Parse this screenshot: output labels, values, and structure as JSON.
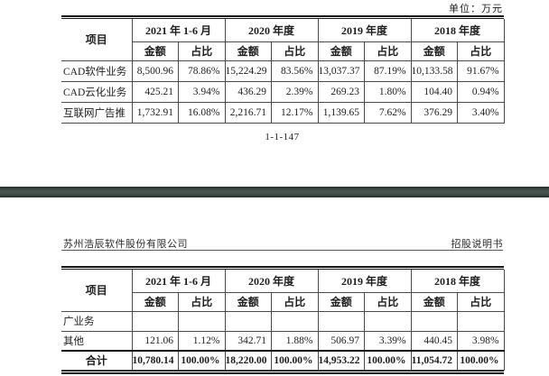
{
  "unit_label": "单位：万元",
  "page1": {
    "table": {
      "item_header": "项目",
      "col_groups": [
        "2021 年 1-6 月",
        "2020 年度",
        "2019 年度",
        "2018 年度"
      ],
      "sub_headers": [
        "金额",
        "占比"
      ],
      "rows": [
        {
          "label": "CAD软件业务",
          "values": [
            "8,500.96",
            "78.86%",
            "15,224.29",
            "83.56%",
            "13,037.37",
            "87.19%",
            "10,133.58",
            "91.67%"
          ]
        },
        {
          "label": "CAD云化业务",
          "values": [
            "425.21",
            "3.94%",
            "436.29",
            "2.39%",
            "269.23",
            "1.80%",
            "104.40",
            "0.94%"
          ]
        },
        {
          "label": "互联网广告推",
          "values": [
            "1,732.91",
            "16.08%",
            "2,216.71",
            "12.17%",
            "1,139.65",
            "7.62%",
            "376.29",
            "3.40%"
          ]
        }
      ]
    },
    "page_number": "1-1-147"
  },
  "page2": {
    "header": {
      "company": "苏州浩辰软件股份有限公司",
      "doc_type": "招股说明书"
    },
    "table": {
      "item_header": "项目",
      "col_groups": [
        "2021 年 1-6 月",
        "2020 年度",
        "2019 年度",
        "2018 年度"
      ],
      "sub_headers": [
        "金额",
        "占比"
      ],
      "rows": [
        {
          "label": "广业务",
          "values": [
            "",
            "",
            "",
            "",
            "",
            "",
            "",
            ""
          ]
        },
        {
          "label": "其他",
          "values": [
            "121.06",
            "1.12%",
            "342.71",
            "1.88%",
            "506.97",
            "3.39%",
            "440.45",
            "3.98%"
          ]
        },
        {
          "label": "合计",
          "values": [
            "10,780.14",
            "100.00%",
            "18,220.00",
            "100.00%",
            "14,953.22",
            "100.00%",
            "11,054.72",
            "100.00%"
          ]
        }
      ]
    }
  },
  "colors": {
    "divider_bar": "#46514e",
    "table_border": "#4a4a4a",
    "text": "#1d1d1d"
  }
}
